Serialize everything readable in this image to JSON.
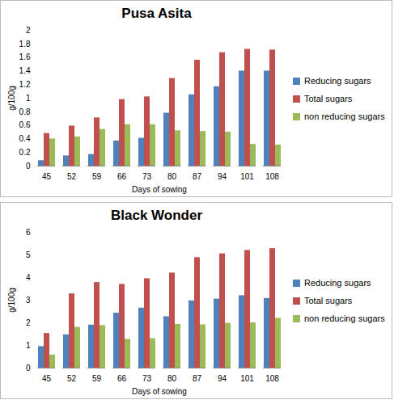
{
  "chart_data": [
    {
      "type": "bar",
      "title": "Pusa Asita",
      "x_label": "Days of sowing",
      "y_label": "g/100g",
      "categories": [
        45,
        52,
        59,
        66,
        73,
        80,
        87,
        94,
        101,
        108
      ],
      "series": [
        {
          "name": "Reducing sugars",
          "color": "#4f81bd",
          "values": [
            0.08,
            0.15,
            0.17,
            0.37,
            0.41,
            0.78,
            1.05,
            1.17,
            1.4,
            1.4
          ]
        },
        {
          "name": "Total sugars",
          "color": "#c0504d",
          "values": [
            0.48,
            0.59,
            0.71,
            0.98,
            1.02,
            1.29,
            1.56,
            1.67,
            1.72,
            1.71
          ]
        },
        {
          "name": "non reducing sugars",
          "color": "#9bbb59",
          "values": [
            0.4,
            0.43,
            0.54,
            0.61,
            0.61,
            0.52,
            0.51,
            0.5,
            0.32,
            0.31
          ]
        }
      ],
      "ylim": [
        0,
        2
      ],
      "yticks": [
        0,
        0.2,
        0.4,
        0.6,
        0.8,
        1,
        1.2,
        1.4,
        1.6,
        1.8,
        2
      ],
      "grid": false,
      "legend": "right"
    },
    {
      "type": "bar",
      "title": "Black Wonder",
      "x_label": "Days of sowing",
      "y_label": "g/100g",
      "categories": [
        45,
        52,
        59,
        66,
        73,
        80,
        87,
        94,
        101,
        108
      ],
      "series": [
        {
          "name": "Reducing sugars",
          "color": "#4f81bd",
          "values": [
            0.95,
            1.47,
            1.9,
            2.43,
            2.65,
            2.27,
            2.97,
            3.05,
            3.2,
            3.08
          ]
        },
        {
          "name": "Total sugars",
          "color": "#c0504d",
          "values": [
            1.53,
            3.28,
            3.78,
            3.7,
            3.95,
            4.2,
            4.88,
            5.05,
            5.2,
            5.28
          ]
        },
        {
          "name": "non reducing sugars",
          "color": "#9bbb59",
          "values": [
            0.58,
            1.8,
            1.88,
            1.27,
            1.3,
            1.93,
            1.91,
            1.98,
            2.0,
            2.2
          ]
        }
      ],
      "ylim": [
        0,
        6
      ],
      "yticks": [
        0,
        1,
        2,
        3,
        4,
        5,
        6
      ],
      "grid": false,
      "legend": "right"
    }
  ]
}
